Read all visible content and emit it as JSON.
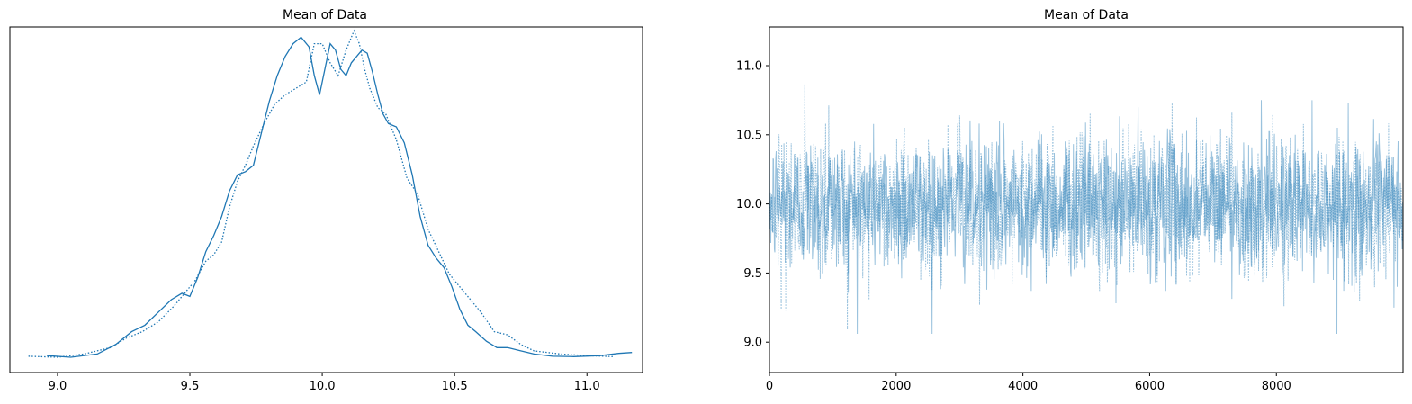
{
  "colors": {
    "series": "#1f77b4",
    "trace": "#1f77b4"
  },
  "chart_data": [
    {
      "type": "line",
      "title": "Mean of Data",
      "xlabel": "",
      "ylabel": "",
      "xlim": [
        8.82,
        11.21
      ],
      "xticks": [
        9.0,
        9.5,
        10.0,
        10.5,
        11.0
      ],
      "xtick_labels": [
        "9.0",
        "9.5",
        "10.0",
        "10.5",
        "11.0"
      ],
      "yticks_shown": false,
      "ylim": [
        0,
        1.08
      ],
      "grid": false,
      "series": [
        {
          "style": "solid",
          "x": [
            8.96,
            9.05,
            9.15,
            9.22,
            9.28,
            9.33,
            9.38,
            9.43,
            9.47,
            9.5,
            9.53,
            9.56,
            9.59,
            9.62,
            9.65,
            9.68,
            9.71,
            9.74,
            9.77,
            9.8,
            9.83,
            9.86,
            9.89,
            9.92,
            9.95,
            9.97,
            9.99,
            10.01,
            10.03,
            10.05,
            10.07,
            10.09,
            10.11,
            10.13,
            10.15,
            10.17,
            10.19,
            10.21,
            10.23,
            10.25,
            10.28,
            10.31,
            10.34,
            10.37,
            10.4,
            10.43,
            10.46,
            10.49,
            10.52,
            10.55,
            10.58,
            10.62,
            10.66,
            10.7,
            10.75,
            10.8,
            10.87,
            10.95,
            11.05,
            11.12,
            11.17
          ],
          "y": [
            0.005,
            0.0,
            0.01,
            0.04,
            0.08,
            0.1,
            0.14,
            0.18,
            0.2,
            0.19,
            0.25,
            0.33,
            0.38,
            0.44,
            0.52,
            0.57,
            0.58,
            0.6,
            0.7,
            0.8,
            0.88,
            0.94,
            0.98,
            1.0,
            0.97,
            0.88,
            0.82,
            0.9,
            0.98,
            0.96,
            0.9,
            0.88,
            0.92,
            0.94,
            0.96,
            0.95,
            0.89,
            0.82,
            0.76,
            0.73,
            0.72,
            0.67,
            0.57,
            0.44,
            0.35,
            0.31,
            0.28,
            0.22,
            0.15,
            0.1,
            0.08,
            0.05,
            0.03,
            0.03,
            0.02,
            0.01,
            0.003,
            0.002,
            0.005,
            0.012,
            0.015
          ]
        },
        {
          "style": "dotted",
          "x": [
            8.89,
            9.0,
            9.1,
            9.2,
            9.26,
            9.32,
            9.38,
            9.44,
            9.48,
            9.52,
            9.56,
            9.59,
            9.62,
            9.65,
            9.68,
            9.71,
            9.74,
            9.78,
            9.82,
            9.86,
            9.9,
            9.94,
            9.97,
            10.0,
            10.03,
            10.06,
            10.09,
            10.12,
            10.14,
            10.16,
            10.18,
            10.21,
            10.24,
            10.28,
            10.32,
            10.36,
            10.4,
            10.44,
            10.48,
            10.52,
            10.56,
            10.6,
            10.65,
            10.7,
            10.75,
            10.8,
            10.9,
            11.0,
            11.1
          ],
          "y": [
            0.003,
            0.0,
            0.01,
            0.03,
            0.06,
            0.08,
            0.11,
            0.16,
            0.2,
            0.24,
            0.3,
            0.32,
            0.36,
            0.47,
            0.55,
            0.6,
            0.66,
            0.73,
            0.79,
            0.82,
            0.84,
            0.86,
            0.98,
            0.98,
            0.92,
            0.88,
            0.96,
            1.02,
            0.98,
            0.9,
            0.84,
            0.78,
            0.76,
            0.68,
            0.56,
            0.51,
            0.4,
            0.33,
            0.26,
            0.22,
            0.18,
            0.14,
            0.08,
            0.07,
            0.04,
            0.02,
            0.01,
            0.005,
            0.002
          ]
        }
      ]
    },
    {
      "type": "line",
      "title": "Mean of Data",
      "xlabel": "",
      "ylabel": "",
      "xlim": [
        0,
        9999
      ],
      "ylim": [
        8.78,
        11.28
      ],
      "xticks": [
        0,
        2000,
        4000,
        6000,
        8000
      ],
      "xtick_labels": [
        "0",
        "2000",
        "4000",
        "6000",
        "8000"
      ],
      "yticks": [
        9.0,
        9.5,
        10.0,
        10.5,
        11.0
      ],
      "ytick_labels": [
        "9.0",
        "9.5",
        "10.0",
        "10.5",
        "11.0"
      ],
      "grid": false,
      "n_draws": 10000,
      "series": [
        {
          "style": "solid",
          "mean": 10.0,
          "sd": 0.25,
          "min": 9.06,
          "max": 11.16
        },
        {
          "style": "dotted",
          "mean": 10.0,
          "sd": 0.25,
          "min": 8.88,
          "max": 11.13
        }
      ]
    }
  ]
}
